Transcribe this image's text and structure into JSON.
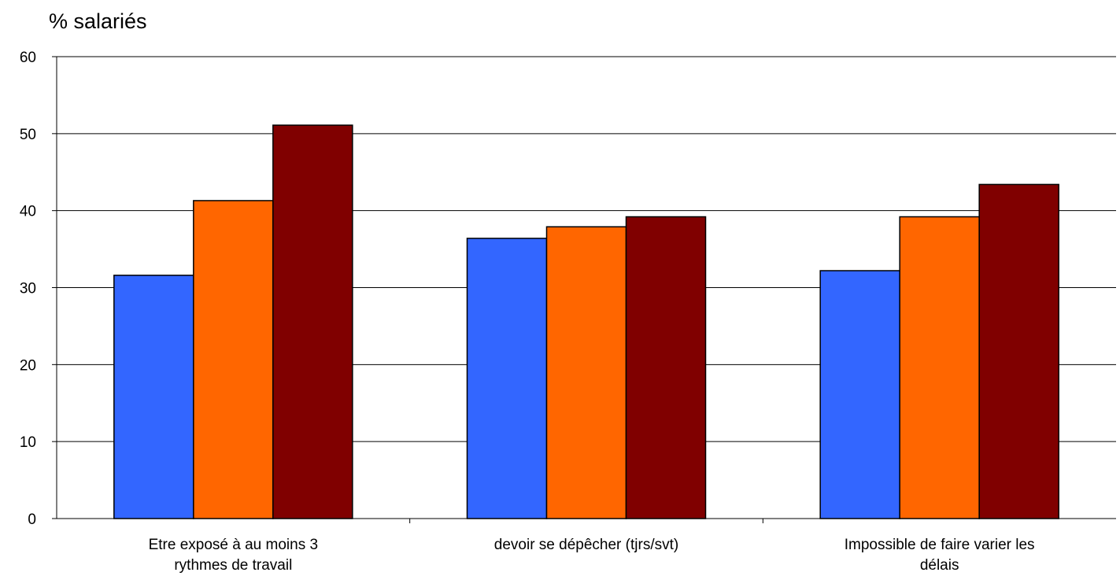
{
  "chart_data": {
    "type": "bar",
    "ylabel": "% salariés",
    "ylim": [
      0,
      60
    ],
    "yticks": [
      0,
      10,
      20,
      30,
      40,
      50,
      60
    ],
    "grid": true,
    "categories": [
      {
        "lines": [
          "Etre exposé à au moins 3",
          "rythmes de travail"
        ]
      },
      {
        "lines": [
          "devoir se dépêcher (tjrs/svt)"
        ]
      },
      {
        "lines": [
          "Impossible de faire varier les",
          "délais"
        ]
      }
    ],
    "series": [
      {
        "color": "#3366FF",
        "values": [
          31.6,
          36.4,
          32.2
        ]
      },
      {
        "color": "#FF6600",
        "values": [
          41.3,
          37.9,
          39.2
        ]
      },
      {
        "color": "#800000",
        "values": [
          51.1,
          39.2,
          43.4
        ]
      }
    ]
  }
}
